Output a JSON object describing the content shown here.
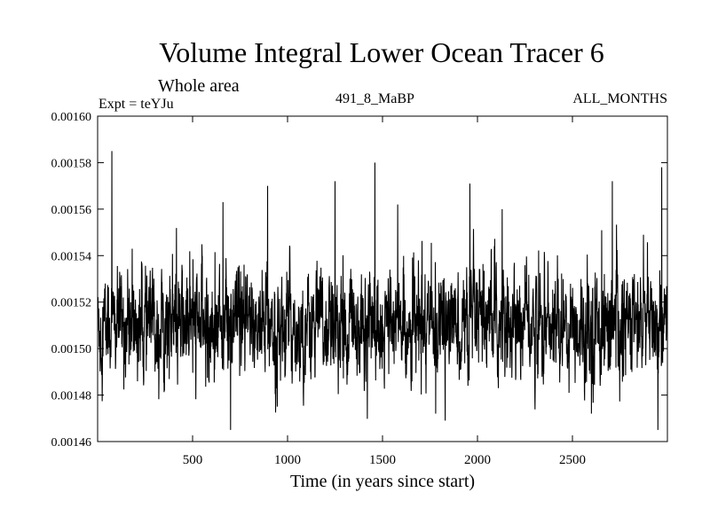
{
  "header": {
    "title": "Volume Integral Lower Ocean Tracer 6",
    "region": "Whole area",
    "experiment": "Expt = teYJu",
    "period": "491_8_MaBP",
    "months": "ALL_MONTHS"
  },
  "chart_data": {
    "type": "line",
    "title": "Volume Integral Lower Ocean Tracer 6",
    "xlabel": "Time (in years since start)",
    "ylabel": "",
    "xlim": [
      0,
      3000
    ],
    "ylim": [
      0.00146,
      0.0016
    ],
    "x_ticks": [
      500,
      1000,
      1500,
      2000,
      2500
    ],
    "x_tick_labels": [
      "500",
      "1000",
      "1500",
      "2000",
      "2500"
    ],
    "y_ticks": [
      0.00146,
      0.00148,
      0.0015,
      0.00152,
      0.00154,
      0.00156,
      0.00158,
      0.0016
    ],
    "y_tick_labels": [
      "0.00146",
      "0.00148",
      "0.00150",
      "0.00152",
      "0.00154",
      "0.00156",
      "0.00158",
      "0.00160"
    ],
    "grid": false,
    "series": [
      {
        "name": "Volume Integral Lower Ocean Tracer 6",
        "description": "Noisy annual time series fluctuating around 0.00151 with spikes up to ~0.001585 and dips down to ~0.001465",
        "x_start": 0,
        "x_step": 1,
        "n_points": 3000,
        "baseline": 0.00151,
        "typical_range": [
          0.00148,
          0.00155
        ],
        "max_value": 0.001585,
        "max_at": 75,
        "min_value": 0.001465,
        "min_at": 700,
        "notable_peaks": [
          {
            "x": 75,
            "y": 0.001585
          },
          {
            "x": 895,
            "y": 0.00157
          },
          {
            "x": 1460,
            "y": 0.00158
          },
          {
            "x": 2710,
            "y": 0.001572
          },
          {
            "x": 2970,
            "y": 0.001578
          },
          {
            "x": 1250,
            "y": 0.001572
          },
          {
            "x": 1960,
            "y": 0.001571
          },
          {
            "x": 660,
            "y": 0.001563
          },
          {
            "x": 1580,
            "y": 0.001562
          },
          {
            "x": 2130,
            "y": 0.00156
          }
        ],
        "notable_dips": [
          {
            "x": 700,
            "y": 0.001465
          },
          {
            "x": 2950,
            "y": 0.001465
          },
          {
            "x": 1830,
            "y": 0.001469
          },
          {
            "x": 1780,
            "y": 0.001472
          },
          {
            "x": 2600,
            "y": 0.001472
          }
        ]
      }
    ]
  }
}
